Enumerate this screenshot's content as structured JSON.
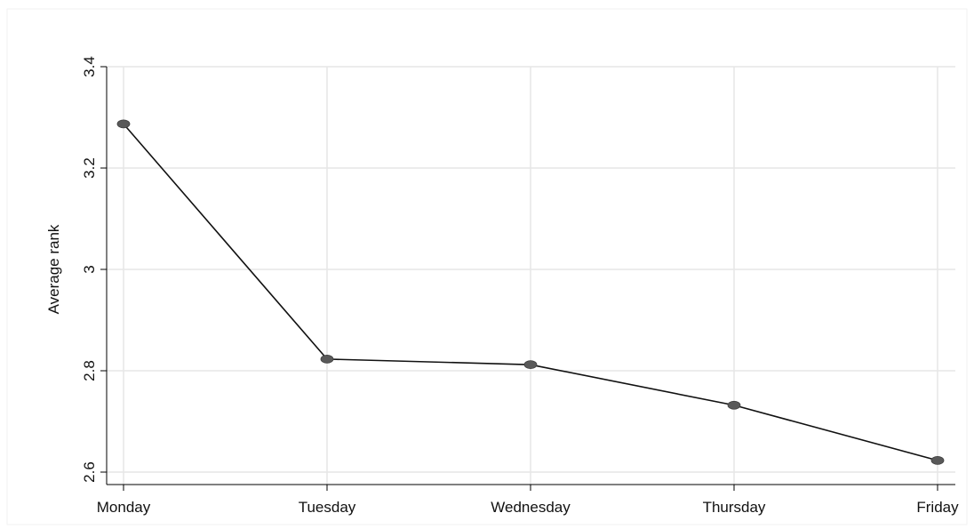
{
  "chart_data": {
    "type": "line",
    "title": "",
    "xlabel": "",
    "ylabel": "Average rank",
    "categories": [
      "Monday",
      "Tuesday",
      "Wednesday",
      "Thursday",
      "Friday"
    ],
    "series": [
      {
        "values": [
          3.287,
          2.823,
          2.812,
          2.732,
          2.623
        ]
      }
    ],
    "ylim": [
      2.6,
      3.4
    ],
    "yticks": [
      "2.6",
      "2.8",
      "3",
      "3.2",
      "3.4"
    ],
    "grid": true,
    "legend": "none",
    "colors": {
      "line": "#111111",
      "marker": "#595959",
      "grid": "#e6e6e6",
      "axis": "#000000",
      "frame": "#f2f2f2"
    }
  }
}
